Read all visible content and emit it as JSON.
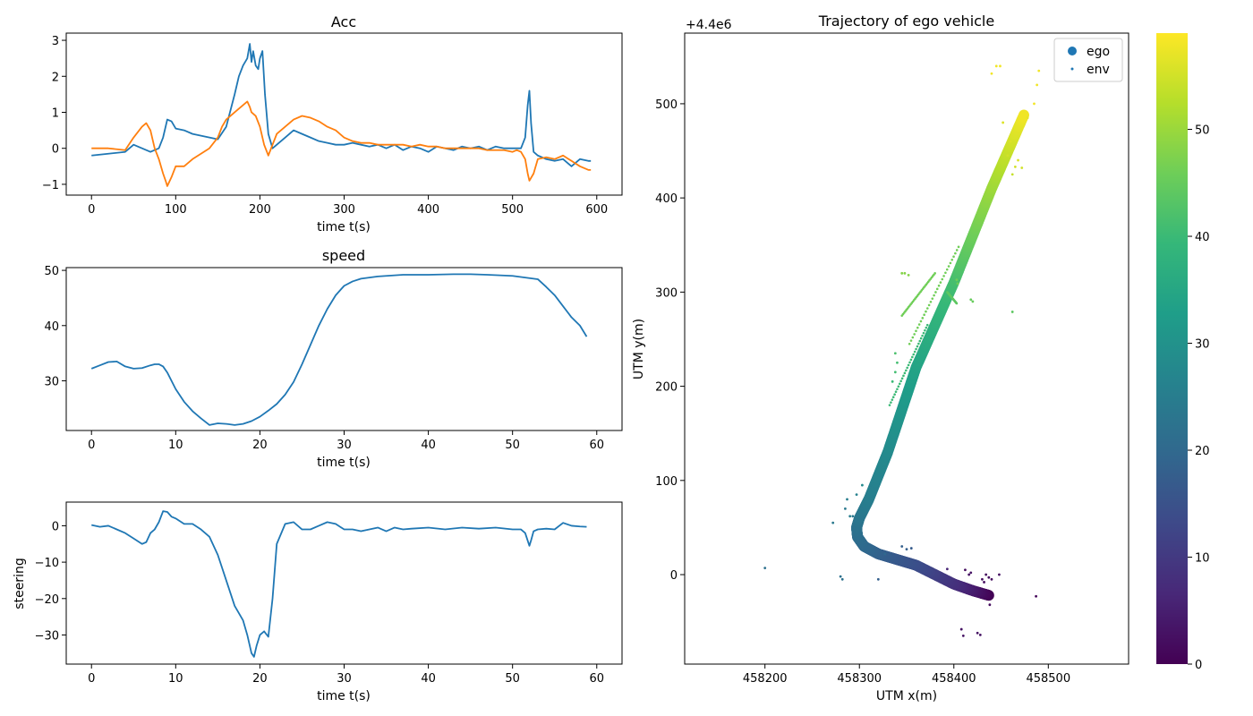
{
  "chart_data": [
    {
      "type": "line",
      "title": "Acc",
      "xlabel": "time t(s)",
      "ylabel": "",
      "xlim": [
        -30,
        630
      ],
      "ylim": [
        -1.3,
        3.2
      ],
      "xticks": [
        0,
        100,
        200,
        300,
        400,
        500,
        600
      ],
      "yticks": [
        -1,
        0,
        1,
        2,
        3
      ],
      "series": [
        {
          "color": "#1f77b4",
          "x": [
            0,
            20,
            40,
            50,
            60,
            70,
            80,
            85,
            90,
            95,
            100,
            110,
            120,
            130,
            140,
            150,
            160,
            170,
            175,
            180,
            185,
            188,
            190,
            192,
            195,
            198,
            200,
            203,
            206,
            210,
            215,
            220,
            230,
            240,
            250,
            260,
            270,
            280,
            290,
            300,
            310,
            320,
            330,
            340,
            350,
            360,
            370,
            380,
            390,
            400,
            410,
            420,
            430,
            440,
            450,
            460,
            470,
            480,
            490,
            500,
            510,
            515,
            518,
            520,
            522,
            525,
            530,
            540,
            550,
            560,
            570,
            580,
            590,
            593
          ],
          "y": [
            -0.2,
            -0.15,
            -0.1,
            0.1,
            0.0,
            -0.1,
            0.0,
            0.3,
            0.8,
            0.75,
            0.55,
            0.5,
            0.4,
            0.35,
            0.3,
            0.25,
            0.6,
            1.5,
            2.0,
            2.3,
            2.5,
            2.9,
            2.4,
            2.7,
            2.3,
            2.2,
            2.5,
            2.7,
            1.5,
            0.4,
            0.0,
            0.1,
            0.3,
            0.5,
            0.4,
            0.3,
            0.2,
            0.15,
            0.1,
            0.1,
            0.15,
            0.1,
            0.05,
            0.1,
            0.0,
            0.1,
            -0.05,
            0.05,
            0.0,
            -0.1,
            0.05,
            0.0,
            -0.05,
            0.05,
            0.0,
            0.05,
            -0.05,
            0.05,
            0.0,
            0.0,
            0.0,
            0.3,
            1.2,
            1.6,
            0.7,
            -0.1,
            -0.2,
            -0.3,
            -0.35,
            -0.3,
            -0.5,
            -0.3,
            -0.35,
            -0.35
          ]
        },
        {
          "color": "#ff7f0e",
          "x": [
            0,
            20,
            40,
            50,
            60,
            65,
            70,
            75,
            80,
            85,
            88,
            90,
            95,
            100,
            110,
            120,
            130,
            140,
            150,
            155,
            160,
            170,
            180,
            185,
            188,
            190,
            195,
            200,
            205,
            210,
            215,
            220,
            230,
            240,
            250,
            260,
            270,
            280,
            290,
            300,
            310,
            320,
            330,
            340,
            350,
            360,
            370,
            380,
            390,
            400,
            410,
            420,
            430,
            440,
            450,
            460,
            470,
            480,
            490,
            500,
            505,
            510,
            515,
            518,
            520,
            525,
            530,
            540,
            550,
            560,
            570,
            580,
            590,
            593
          ],
          "y": [
            0.0,
            0.0,
            -0.05,
            0.3,
            0.6,
            0.7,
            0.5,
            0.0,
            -0.3,
            -0.7,
            -0.9,
            -1.05,
            -0.8,
            -0.5,
            -0.5,
            -0.3,
            -0.15,
            0.0,
            0.3,
            0.6,
            0.8,
            1.0,
            1.2,
            1.3,
            1.15,
            1.0,
            0.9,
            0.6,
            0.1,
            -0.2,
            0.1,
            0.4,
            0.6,
            0.8,
            0.9,
            0.85,
            0.75,
            0.6,
            0.5,
            0.3,
            0.2,
            0.15,
            0.15,
            0.1,
            0.1,
            0.1,
            0.1,
            0.05,
            0.1,
            0.05,
            0.05,
            0.0,
            0.0,
            0.0,
            0.0,
            0.0,
            -0.05,
            -0.05,
            -0.05,
            -0.1,
            -0.05,
            -0.1,
            -0.3,
            -0.7,
            -0.9,
            -0.7,
            -0.3,
            -0.25,
            -0.3,
            -0.2,
            -0.35,
            -0.5,
            -0.6,
            -0.6
          ]
        }
      ]
    },
    {
      "type": "line",
      "title": "speed",
      "xlabel": "time t(s)",
      "ylabel": "",
      "xlim": [
        -3,
        63
      ],
      "ylim": [
        21,
        50.5
      ],
      "xticks": [
        0,
        10,
        20,
        30,
        40,
        50,
        60
      ],
      "yticks": [
        30,
        40,
        50
      ],
      "series": [
        {
          "color": "#1f77b4",
          "x": [
            0,
            1,
            2,
            3,
            4,
            5,
            6,
            7,
            7.5,
            8,
            8.5,
            9,
            10,
            11,
            12,
            13,
            14,
            15,
            16,
            17,
            18,
            19,
            20,
            21,
            22,
            23,
            24,
            25,
            26,
            27,
            28,
            29,
            30,
            31,
            32,
            33,
            34,
            35,
            37,
            40,
            43,
            45,
            47,
            50,
            52,
            53,
            54,
            55,
            56,
            57,
            58,
            58.8
          ],
          "y": [
            32.2,
            32.8,
            33.4,
            33.5,
            32.6,
            32.2,
            32.3,
            32.8,
            33.0,
            33.0,
            32.6,
            31.5,
            28.5,
            26.2,
            24.5,
            23.2,
            22.0,
            22.3,
            22.2,
            22.0,
            22.2,
            22.7,
            23.5,
            24.6,
            25.8,
            27.5,
            29.8,
            33.0,
            36.5,
            40.0,
            43.0,
            45.5,
            47.2,
            48.0,
            48.5,
            48.7,
            48.9,
            49.0,
            49.2,
            49.2,
            49.3,
            49.3,
            49.2,
            49.0,
            48.6,
            48.4,
            47.0,
            45.5,
            43.5,
            41.5,
            40.0,
            38.0
          ]
        }
      ]
    },
    {
      "type": "line",
      "title": "",
      "xlabel": "time t(s)",
      "ylabel": "steering",
      "xlim": [
        -3,
        63
      ],
      "ylim": [
        -38,
        6.5
      ],
      "xticks": [
        0,
        10,
        20,
        30,
        40,
        50,
        60
      ],
      "yticks": [
        0,
        -10,
        -20,
        -30
      ],
      "series": [
        {
          "color": "#1f77b4",
          "x": [
            0,
            1,
            2,
            3,
            4,
            5,
            6,
            6.5,
            7,
            7.5,
            8,
            8.5,
            9,
            9.5,
            10,
            11,
            12,
            13,
            14,
            15,
            16,
            17,
            17.5,
            18,
            18.5,
            18.8,
            19,
            19.3,
            19.6,
            20,
            20.5,
            21,
            21.5,
            22,
            23,
            24,
            25,
            26,
            27,
            28,
            29,
            30,
            31,
            32,
            33,
            34,
            35,
            36,
            37,
            38,
            40,
            42,
            44,
            46,
            48,
            50,
            51,
            51.5,
            52,
            52.2,
            52.5,
            53,
            54,
            55,
            56,
            57,
            58,
            58.8
          ],
          "y": [
            0.2,
            -0.3,
            0.0,
            -1.0,
            -2.0,
            -3.5,
            -5.0,
            -4.5,
            -2.0,
            -1.0,
            1.0,
            4.0,
            3.8,
            2.5,
            2.0,
            0.5,
            0.5,
            -1.0,
            -3.0,
            -8.0,
            -15.0,
            -22.0,
            -24.0,
            -26.0,
            -30.0,
            -33.0,
            -35.0,
            -36.0,
            -33.0,
            -30.0,
            -29.0,
            -30.5,
            -20.0,
            -5.0,
            0.5,
            1.0,
            -1.0,
            -1.0,
            0.0,
            1.0,
            0.5,
            -1.0,
            -1.0,
            -1.5,
            -1.0,
            -0.5,
            -1.5,
            -0.5,
            -1.0,
            -0.8,
            -0.5,
            -1.0,
            -0.5,
            -0.8,
            -0.5,
            -1.0,
            -1.0,
            -2.0,
            -5.5,
            -4.0,
            -1.5,
            -1.0,
            -0.8,
            -1.0,
            0.8,
            0.0,
            -0.2,
            -0.3
          ]
        }
      ]
    },
    {
      "type": "scatter",
      "title": "Trajectory of ego vehicle",
      "xlabel": "UTM x(m)",
      "ylabel": "UTM y(m)",
      "offset_text": "+4.4e6",
      "xlim": [
        458115,
        458585
      ],
      "ylim": [
        -95,
        575
      ],
      "xticks": [
        458200,
        458300,
        458400,
        458500
      ],
      "yticks": [
        0,
        100,
        200,
        300,
        400,
        500
      ],
      "legend": {
        "position": "top-right",
        "entries": [
          "ego",
          "env"
        ]
      },
      "colorbar": {
        "colormap": "viridis",
        "range": [
          0,
          59
        ],
        "ticks": [
          0,
          10,
          20,
          30,
          40,
          50
        ],
        "stops": [
          "#440154",
          "#482878",
          "#3e4989",
          "#31688e",
          "#26828e",
          "#1f9e89",
          "#35b779",
          "#6ece58",
          "#b5de2b",
          "#fde725"
        ]
      },
      "ego_path": {
        "x": [
          458437,
          458420,
          458400,
          458380,
          458360,
          458340,
          458320,
          458305,
          458298,
          458297,
          458300,
          458310,
          458330,
          458360,
          458400,
          458440,
          458475
        ],
        "y": [
          -22,
          -17,
          -10,
          0,
          10,
          16,
          22,
          30,
          40,
          50,
          60,
          80,
          130,
          220,
          310,
          410,
          490
        ],
        "t": [
          0,
          4,
          8,
          11,
          14,
          16,
          18,
          20,
          21,
          22,
          23,
          25,
          28,
          34,
          41,
          50,
          58
        ]
      },
      "env_points": {
        "x": [
          458200,
          458280,
          458282,
          458272,
          458293,
          458297,
          458287,
          458285,
          458303,
          458320,
          458408,
          458410,
          458412,
          458416,
          458418,
          458425,
          458428,
          458430,
          458432,
          458434,
          458437,
          458440,
          458487,
          458438,
          458345,
          458350,
          458440,
          458445,
          458449,
          458452,
          458457,
          458460,
          458462,
          458465,
          458468,
          458472,
          458478,
          458485,
          458488,
          458490,
          458345,
          458348,
          458352,
          458403,
          458404,
          458418,
          458420,
          458462,
          458335,
          458338,
          458340,
          458338,
          458290,
          458327,
          458355,
          458393,
          458448
        ],
        "y": [
          7,
          -2,
          -5,
          55,
          62,
          85,
          80,
          70,
          95,
          -5,
          -58,
          -65,
          5,
          0,
          2,
          -62,
          -64,
          -5,
          -8,
          0,
          -3,
          -5,
          -23,
          -32,
          30,
          27,
          532,
          540,
          540,
          480,
          445,
          460,
          425,
          433,
          440,
          432,
          485,
          500,
          520,
          535,
          320,
          320,
          318,
          313,
          309,
          292,
          290,
          279,
          205,
          215,
          225,
          235,
          62,
          22,
          28,
          6,
          0
        ],
        "t": [
          22,
          22,
          22,
          24,
          24,
          26,
          25,
          24,
          28,
          18,
          3,
          3,
          2,
          3,
          3,
          3,
          3,
          2,
          2,
          2,
          2,
          2,
          1,
          2,
          18,
          18,
          58,
          58,
          58,
          56,
          55,
          56,
          54,
          55,
          56,
          55,
          57,
          58,
          58,
          58,
          48,
          48,
          48,
          46,
          46,
          45,
          45,
          44,
          40,
          41,
          41,
          42,
          25,
          20,
          17,
          6,
          3
        ]
      },
      "env_segments": [
        {
          "from": [
            458353,
            245
          ],
          "to": [
            458405,
            348
          ],
          "t": 46
        },
        {
          "from": [
            458332,
            180
          ],
          "to": [
            458372,
            265
          ],
          "t": 40
        },
        {
          "from": [
            458345,
            275
          ],
          "to": [
            458380,
            320
          ],
          "t": 46
        },
        {
          "from": [
            458393,
            300
          ],
          "to": [
            458403,
            288
          ],
          "t": 44
        }
      ]
    }
  ]
}
